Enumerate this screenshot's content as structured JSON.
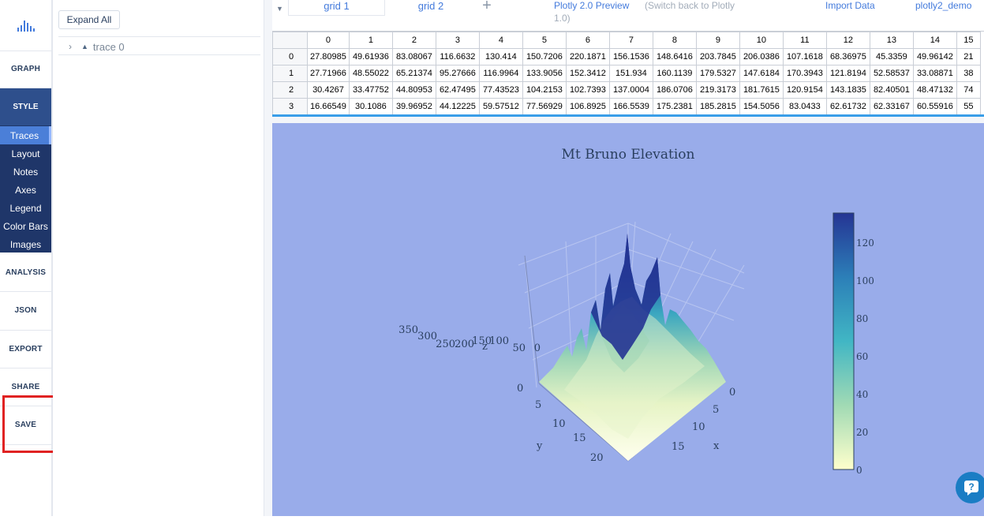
{
  "nav": {
    "graph": "GRAPH",
    "style": "STYLE",
    "style_items": [
      "Traces",
      "Layout",
      "Notes",
      "Axes",
      "Legend",
      "Color Bars",
      "Images"
    ],
    "analysis": "ANALYSIS",
    "json": "JSON",
    "export": "EXPORT",
    "share": "SHARE",
    "save": "SAVE"
  },
  "panel": {
    "expand_all": "Expand All",
    "trace_label": "trace 0"
  },
  "tabs": {
    "grid1": "grid 1",
    "grid2": "grid 2",
    "preview": "Plotly 2.0 Preview",
    "switch_back": "(Switch back to Plotly",
    "switch_back_2": "1.0)",
    "import_data": "Import Data",
    "user": "plotly2_demo"
  },
  "grid": {
    "columns": [
      "0",
      "1",
      "2",
      "3",
      "4",
      "5",
      "6",
      "7",
      "8",
      "9",
      "10",
      "11",
      "12",
      "13",
      "14",
      "15"
    ],
    "rows": [
      {
        "idx": "0",
        "cells": [
          "27.80985",
          "49.61936",
          "83.08067",
          "116.6632",
          "130.414",
          "150.7206",
          "220.1871",
          "156.1536",
          "148.6416",
          "203.7845",
          "206.0386",
          "107.1618",
          "68.36975",
          "45.3359",
          "49.96142",
          "21"
        ]
      },
      {
        "idx": "1",
        "cells": [
          "27.71966",
          "48.55022",
          "65.21374",
          "95.27666",
          "116.9964",
          "133.9056",
          "152.3412",
          "151.934",
          "160.1139",
          "179.5327",
          "147.6184",
          "170.3943",
          "121.8194",
          "52.58537",
          "33.08871",
          "38"
        ]
      },
      {
        "idx": "2",
        "cells": [
          "30.4267",
          "33.47752",
          "44.80953",
          "62.47495",
          "77.43523",
          "104.2153",
          "102.7393",
          "137.0004",
          "186.0706",
          "219.3173",
          "181.7615",
          "120.9154",
          "143.1835",
          "82.40501",
          "48.47132",
          "74"
        ]
      },
      {
        "idx": "3",
        "cells": [
          "16.66549",
          "30.1086",
          "39.96952",
          "44.12225",
          "59.57512",
          "77.56929",
          "106.8925",
          "166.5539",
          "175.2381",
          "185.2815",
          "154.5056",
          "83.0433",
          "62.61732",
          "62.33167",
          "60.55916",
          "55"
        ]
      }
    ]
  },
  "chart_data": {
    "type": "surface",
    "title": "Mt Bruno Elevation",
    "axes": {
      "x": {
        "label": "x",
        "ticks": [
          "0",
          "5",
          "10",
          "15"
        ]
      },
      "y": {
        "label": "y",
        "ticks": [
          "0",
          "5",
          "10",
          "15",
          "20"
        ]
      },
      "z": {
        "label": "z",
        "ticks": [
          "0",
          "50",
          "100",
          "150",
          "200",
          "250",
          "300",
          "350"
        ]
      }
    },
    "colorbar": {
      "ticks": [
        "0",
        "20",
        "40",
        "60",
        "80",
        "100",
        "120"
      ],
      "colorscale": [
        "#ffffcc",
        "#a1dab4",
        "#41b6c4",
        "#2c7fb8",
        "#253494"
      ]
    },
    "background": "#99acea"
  }
}
